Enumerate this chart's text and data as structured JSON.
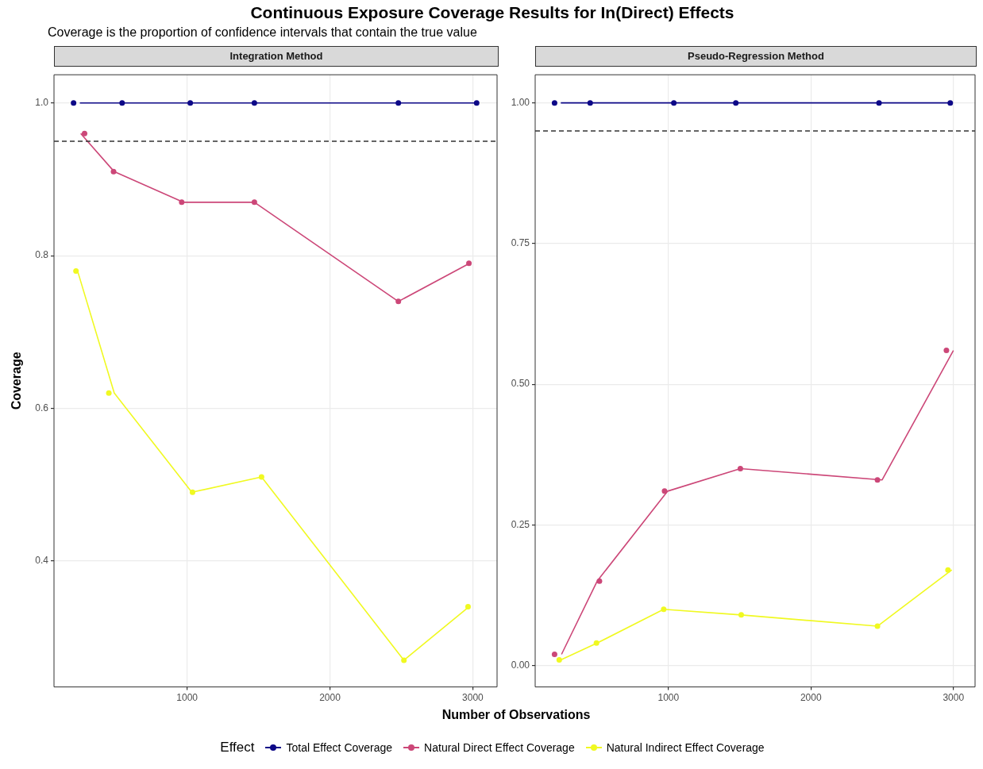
{
  "chart_data": [
    {
      "type": "line",
      "title": "Continuous Exposure Coverage Results for In(Direct) Effects",
      "subtitle": "Coverage is the proportion of confidence intervals that contain the true value",
      "annotations": [
        "Integration Method"
      ],
      "xlabel": "Number of Observations",
      "ylabel": "Coverage",
      "legend_title": "Effect",
      "legend": "bottom",
      "grid": true,
      "xlim": [
        68,
        3170
      ],
      "ylim": [
        0.235,
        1.037
      ],
      "xticks": [
        1000,
        2000,
        3000
      ],
      "yticks": [
        0.4,
        0.6,
        0.8,
        {
          "value": 1,
          "label": "1.0"
        }
      ],
      "ref_lines": [
        {
          "axis": "y",
          "value": 0.95,
          "line_style": "dashed",
          "color": "#333333"
        }
      ],
      "series": [
        {
          "name": "Total Effect Coverage",
          "type": "line",
          "marker": "none",
          "color": "#0d0887",
          "x": [
            249,
            545,
            1022,
            1471,
            2479,
            3027
          ],
          "values": [
            1,
            1,
            1,
            1,
            1,
            1
          ]
        },
        {
          "type": "scatter",
          "marker": "circle",
          "color": "#0d0887",
          "x": [
            205,
            545,
            1022,
            1471,
            2479,
            3027
          ],
          "values": [
            1,
            1,
            1,
            1,
            1,
            1
          ]
        },
        {
          "name": "Natural Direct Effect Coverage",
          "type": "line",
          "marker": "none",
          "color": "#cc4778",
          "x": [
            255,
            490,
            973,
            1471,
            2479,
            2978
          ],
          "values": [
            0.96,
            0.91,
            0.87,
            0.87,
            0.74,
            0.79
          ]
        },
        {
          "type": "scatter",
          "marker": "circle",
          "color": "#cc4778",
          "x": [
            282,
            485,
            962,
            1471,
            2479,
            2973
          ],
          "values": [
            0.96,
            0.91,
            0.87,
            0.87,
            0.74,
            0.79
          ]
        },
        {
          "name": "Natural Indirect Effect Coverage",
          "type": "line",
          "marker": "none",
          "color": "#f0f921",
          "x": [
            233,
            490,
            1033,
            1521,
            2518,
            2973
          ],
          "values": [
            0.78,
            0.62,
            0.49,
            0.51,
            0.27,
            0.34
          ]
        },
        {
          "type": "scatter",
          "marker": "circle",
          "color": "#f0f921",
          "x": [
            222,
            452,
            1038,
            1521,
            2518,
            2967
          ],
          "values": [
            0.78,
            0.62,
            0.49,
            0.51,
            0.27,
            0.34
          ]
        }
      ]
    },
    {
      "type": "line",
      "annotations": [
        "Pseudo-Regression Method"
      ],
      "grid": true,
      "xlim": [
        65,
        3152
      ],
      "ylim": [
        -0.038,
        1.05
      ],
      "xticks": [
        1000,
        2000,
        3000
      ],
      "yticks": [
        {
          "value": 0,
          "label": "0.00"
        },
        0.25,
        {
          "value": 0.5,
          "label": "0.50"
        },
        0.75,
        {
          "value": 1,
          "label": "1.00"
        }
      ],
      "ref_lines": [
        {
          "axis": "y",
          "value": 0.95,
          "line_style": "dashed",
          "color": "#333333"
        }
      ],
      "series": [
        {
          "type": "line",
          "marker": "none",
          "color": "#0d0887",
          "x": [
            245,
            451,
            1038,
            1473,
            2478,
            2978
          ],
          "values": [
            1,
            1,
            1,
            1,
            1,
            1
          ]
        },
        {
          "type": "scatter",
          "marker": "circle",
          "color": "#0d0887",
          "x": [
            201,
            451,
            1038,
            1473,
            2478,
            2978
          ],
          "values": [
            1,
            1,
            1,
            1,
            1,
            1
          ]
        },
        {
          "type": "line",
          "marker": "none",
          "color": "#cc4778",
          "x": [
            250,
            500,
            995,
            1505,
            2500,
            3000
          ],
          "values": [
            0.02,
            0.15,
            0.31,
            0.35,
            0.33,
            0.56
          ]
        },
        {
          "type": "scatter",
          "marker": "circle",
          "color": "#cc4778",
          "x": [
            201,
            516,
            973,
            1505,
            2467,
            2951
          ],
          "values": [
            0.02,
            0.15,
            0.31,
            0.35,
            0.33,
            0.56
          ]
        },
        {
          "type": "line",
          "marker": "none",
          "color": "#f0f921",
          "x": [
            245,
            500,
            967,
            1511,
            2467,
            2989
          ],
          "values": [
            0.01,
            0.04,
            0.1,
            0.09,
            0.07,
            0.17
          ]
        },
        {
          "type": "scatter",
          "marker": "circle",
          "color": "#f0f921",
          "x": [
            234,
            495,
            967,
            1511,
            2467,
            2962
          ],
          "values": [
            0.01,
            0.04,
            0.1,
            0.09,
            0.07,
            0.17
          ]
        }
      ]
    }
  ]
}
